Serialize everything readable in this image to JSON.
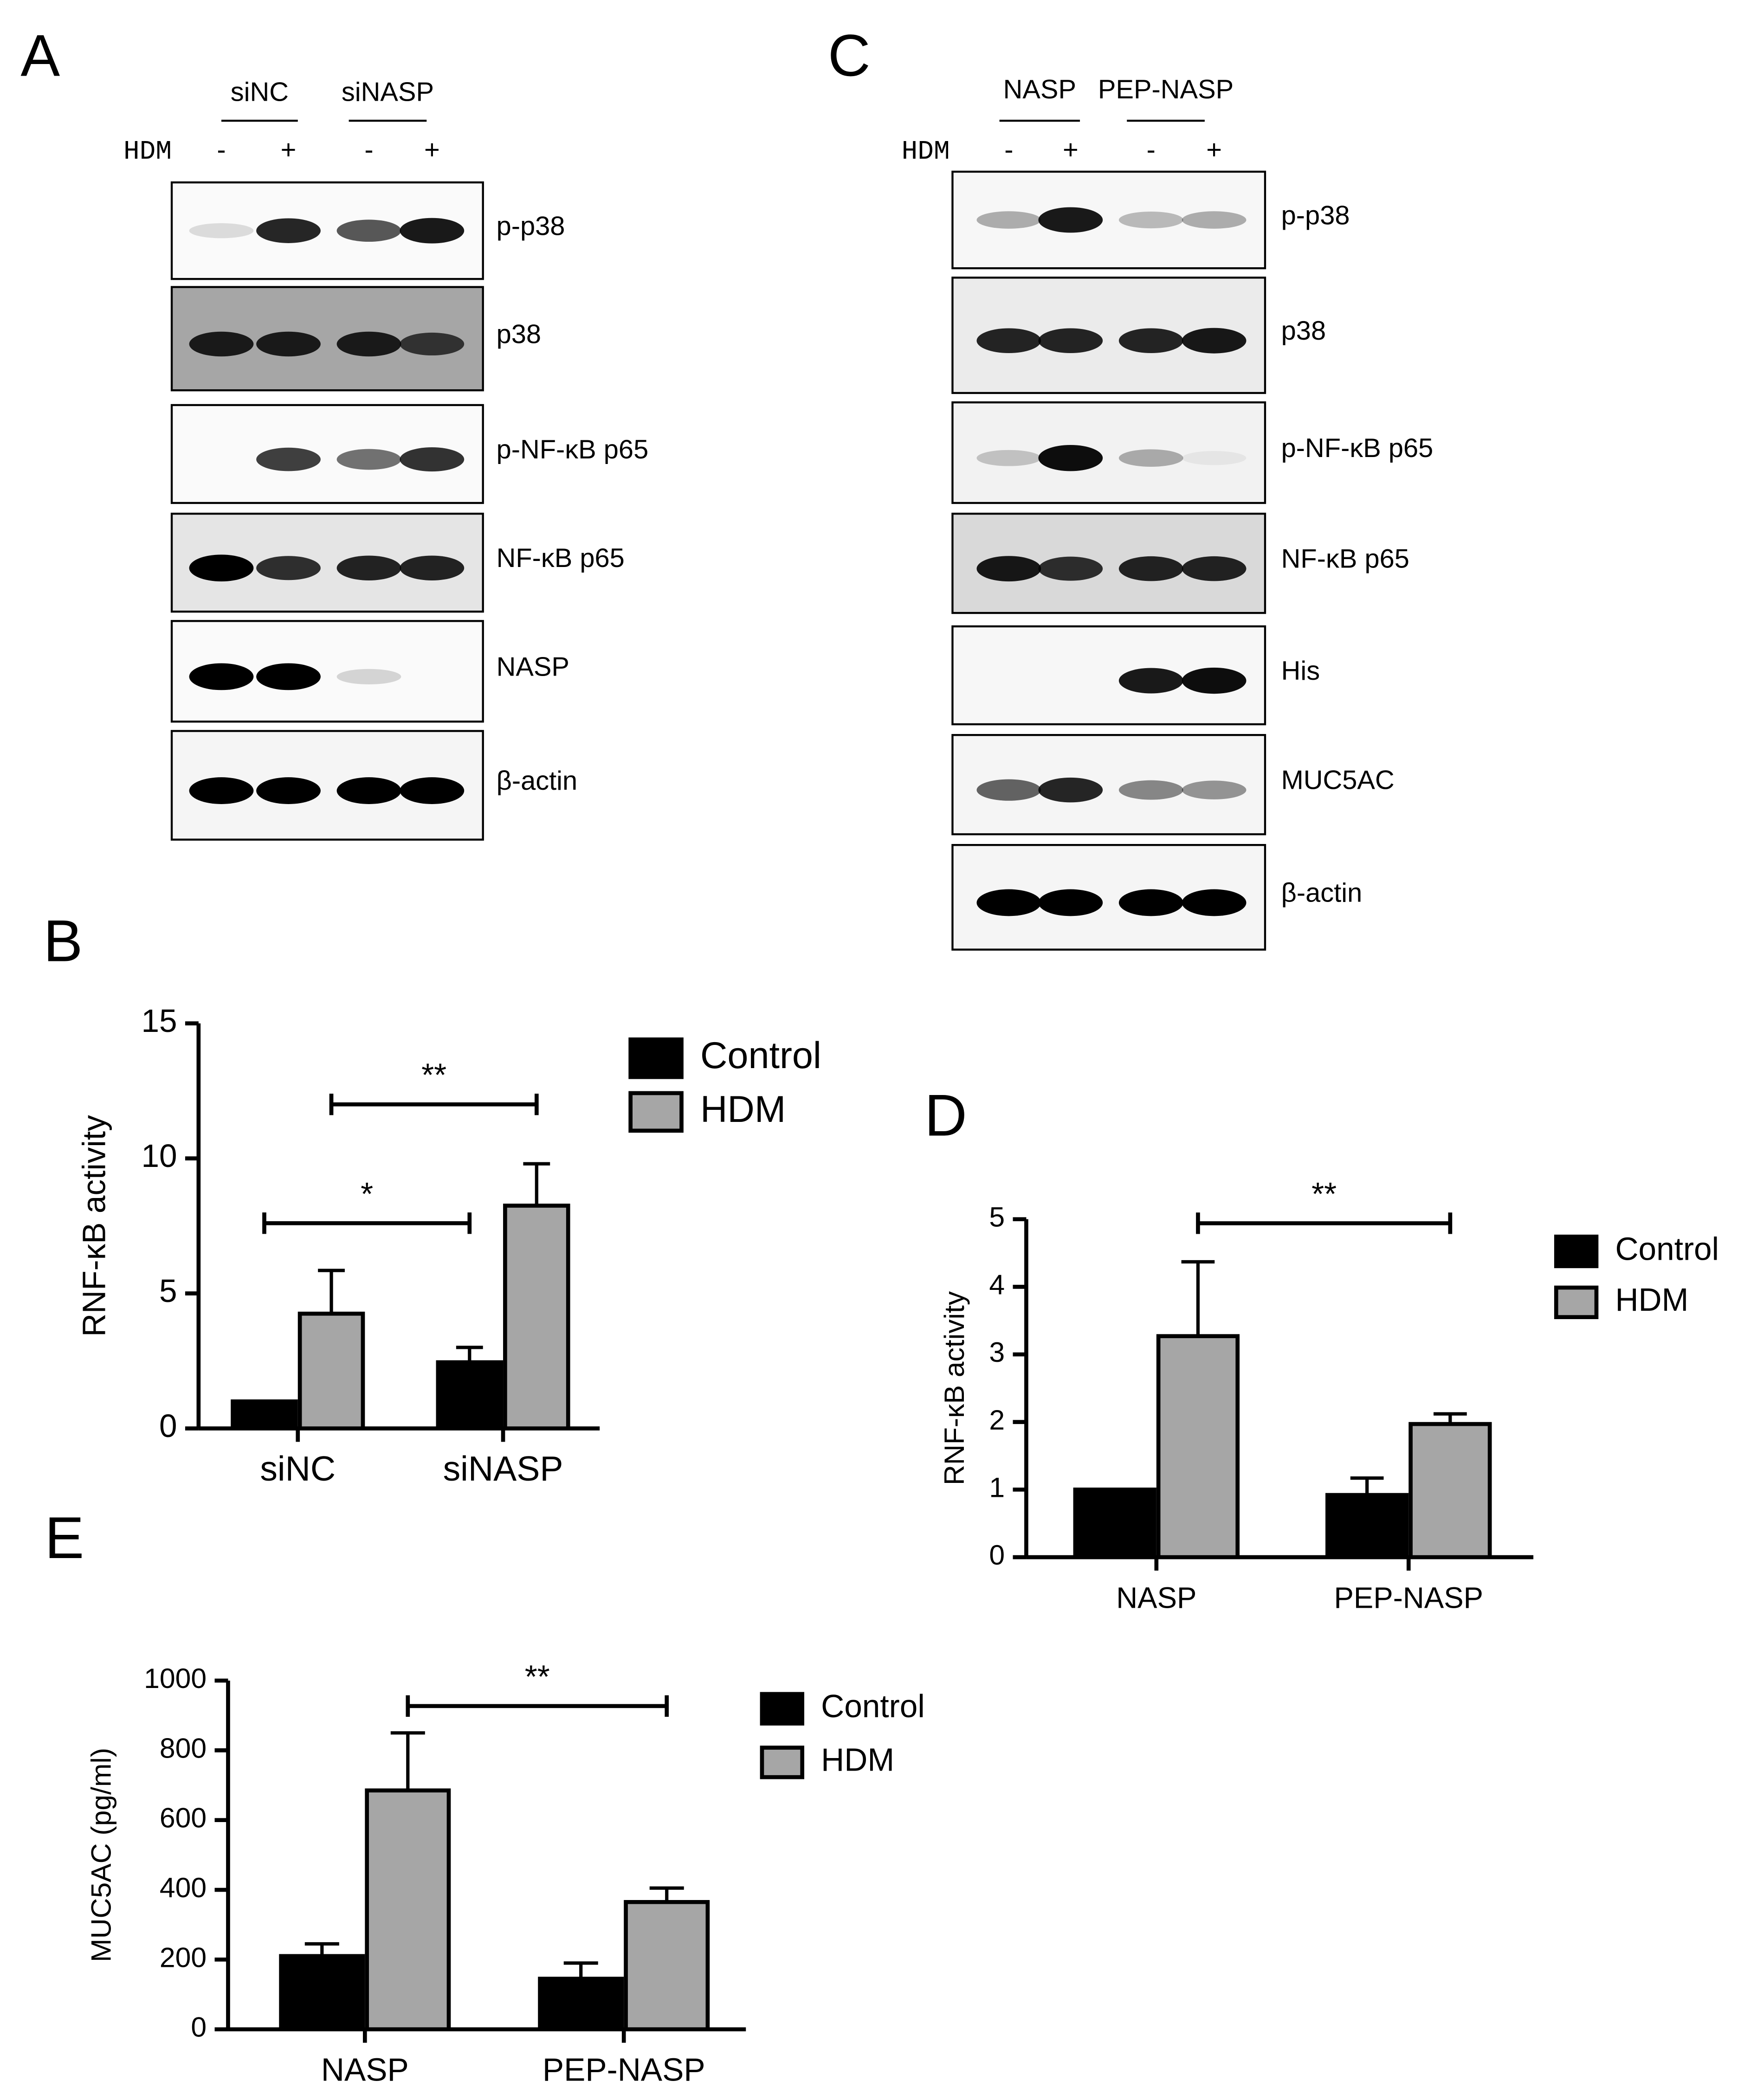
{
  "blots": [
    {
      "panel": "A",
      "groups": [
        "siNC",
        "siNASP"
      ],
      "treatment": "HDM",
      "lanes": [
        "-",
        "+",
        "-",
        "+"
      ],
      "bands": [
        "p-p38",
        "p38",
        "p-NF-κB p65",
        "NF-κB p65",
        "NASP",
        "β-actin"
      ]
    },
    {
      "panel": "C",
      "groups": [
        "NASP",
        "PEP-NASP"
      ],
      "treatment": "HDM",
      "lanes": [
        "-",
        "+",
        "-",
        "+"
      ],
      "bands": [
        "p-p38",
        "p38",
        "p-NF-κB p65",
        "NF-κB p65",
        "His",
        "MUC5AC",
        "β-actin"
      ]
    }
  ],
  "chart_data": [
    {
      "type": "bar",
      "panel": "B",
      "ylabel": "RNF-κB activity",
      "categories": [
        "siNC",
        "siNASP"
      ],
      "series": [
        {
          "name": "Control",
          "color": "#000000",
          "values": [
            1,
            2.45
          ],
          "errors": [
            0,
            0.55
          ]
        },
        {
          "name": "HDM",
          "color": "#a6a6a6",
          "values": [
            4.25,
            8.25
          ],
          "errors": [
            1.6,
            1.55
          ]
        }
      ],
      "ylim": [
        0,
        15
      ],
      "yticks": [
        0,
        5,
        10,
        15
      ],
      "annotations": [
        "*",
        "**"
      ]
    },
    {
      "type": "bar",
      "panel": "D",
      "ylabel": "RNF-κB activity",
      "categories": [
        "NASP",
        "PEP-NASP"
      ],
      "series": [
        {
          "name": "Control",
          "color": "#000000",
          "values": [
            1,
            0.92
          ],
          "errors": [
            0,
            0.25
          ]
        },
        {
          "name": "HDM",
          "color": "#a6a6a6",
          "values": [
            3.27,
            1.97
          ],
          "errors": [
            1.1,
            0.15
          ]
        }
      ],
      "ylim": [
        0,
        5
      ],
      "yticks": [
        0,
        1,
        2,
        3,
        4,
        5
      ],
      "annotations": [
        "**"
      ]
    },
    {
      "type": "bar",
      "panel": "E",
      "ylabel": "MUC5AC (pg/ml)",
      "categories": [
        "NASP",
        "PEP-NASP"
      ],
      "series": [
        {
          "name": "Control",
          "color": "#000000",
          "values": [
            210,
            145
          ],
          "errors": [
            35,
            45
          ]
        },
        {
          "name": "HDM",
          "color": "#a6a6a6",
          "values": [
            685,
            365
          ],
          "errors": [
            165,
            40
          ]
        }
      ],
      "ylim": [
        0,
        1000
      ],
      "yticks": [
        0,
        200,
        400,
        600,
        800,
        1000
      ],
      "annotations": [
        "**"
      ]
    }
  ]
}
